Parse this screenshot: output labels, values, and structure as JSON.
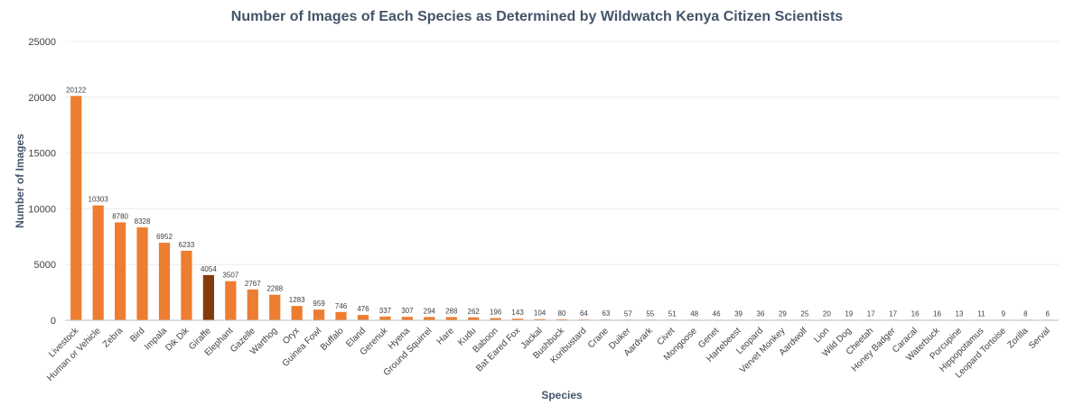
{
  "colors": {
    "bar": "#ed7d31",
    "highlight": "#843c0c",
    "grid": "#ececec",
    "axis": "#bfbfbf"
  },
  "chart_data": {
    "type": "bar",
    "title": "Number of Images of Each Species as Determined by Wildwatch Kenya Citizen Scientists",
    "xlabel": "Species",
    "ylabel": "Number of Images",
    "ylim": [
      0,
      25000
    ],
    "yticks": [
      "0",
      "5000",
      "10000",
      "15000",
      "20000",
      "25000"
    ],
    "grid": true,
    "legend": "none",
    "highlight_category": "Giraffe",
    "categories": [
      "Livestock",
      "Human or Vehicle",
      "Zebra",
      "Bird",
      "Impala",
      "Dik Dik",
      "Giraffe",
      "Elephant",
      "Gazelle",
      "Warthog",
      "Oryx",
      "Guinea Fowl",
      "Buffalo",
      "Eland",
      "Gerenuk",
      "Hyena",
      "Ground Squirrel",
      "Hare",
      "Kudu",
      "Baboon",
      "Bat Eared Fox",
      "Jackal",
      "Bushbuck",
      "Koribustard",
      "Crane",
      "Duiker",
      "Aardvark",
      "Civet",
      "Mongoose",
      "Genet",
      "Hartebeest",
      "Leopard",
      "Vervet Monkey",
      "Aardwolf",
      "Lion",
      "Wild Dog",
      "Cheetah",
      "Honey Badger",
      "Caracal",
      "Waterbuck",
      "Porcupine",
      "Hippopotamus",
      "Leopard Tortoise",
      "Zorilla",
      "Serval"
    ],
    "values": [
      20122,
      10303,
      8780,
      8328,
      6952,
      6233,
      4054,
      3507,
      2767,
      2288,
      1283,
      959,
      746,
      476,
      337,
      307,
      294,
      288,
      262,
      196,
      143,
      104,
      80,
      64,
      63,
      57,
      55,
      51,
      48,
      46,
      39,
      36,
      29,
      25,
      20,
      19,
      17,
      17,
      16,
      16,
      13,
      11,
      9,
      8,
      6
    ]
  }
}
